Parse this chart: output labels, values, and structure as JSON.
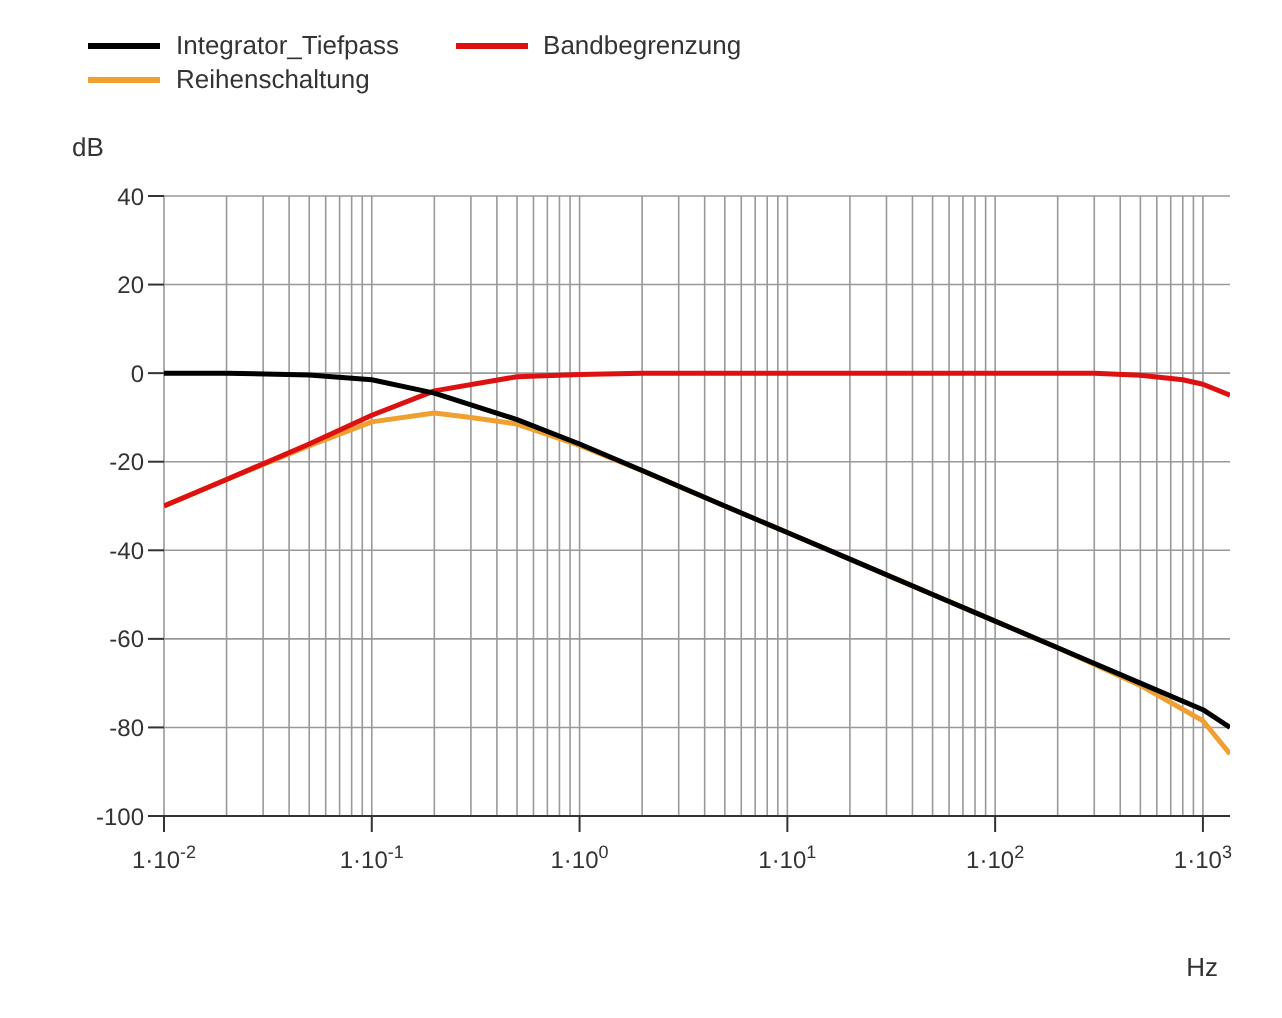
{
  "chart_data": {
    "type": "line",
    "xlabel": "Hz",
    "ylabel": "dB",
    "log": "x",
    "grid": true,
    "legend": "top left",
    "marker": "none",
    "line_style": "solid",
    "xlim": [
      0.01,
      1350
    ],
    "ylim": [
      -100,
      40
    ],
    "xticks": [
      {
        "value": 0.01,
        "label": "1·10$^{-2}$"
      },
      {
        "value": 0.1,
        "label": "1·10$^{-1}$"
      },
      {
        "value": 1,
        "label": "1·10$^{0}$"
      },
      {
        "value": 10,
        "label": "1·10$^{1}$"
      },
      {
        "value": 100,
        "label": "1·10$^{2}$"
      },
      {
        "value": 1000,
        "label": "1·10$^{3}$"
      }
    ],
    "yticks": [
      -100,
      -80,
      -60,
      -40,
      -20,
      0,
      20,
      40
    ],
    "series": [
      {
        "name": "Integrator_Tiefpass",
        "color": "#000000",
        "x": [
          0.01,
          0.02,
          0.05,
          0.1,
          0.2,
          0.5,
          1,
          2,
          5,
          10,
          20,
          50,
          100,
          200,
          500,
          1000,
          1350
        ],
        "values": [
          0,
          0,
          -0.4,
          -1.5,
          -4.5,
          -10.5,
          -16,
          -22,
          -30,
          -36,
          -42,
          -50,
          -56,
          -62,
          -70,
          -76,
          -80
        ]
      },
      {
        "name": "Bandbegrenzung",
        "color": "#dd1111",
        "x": [
          0.01,
          0.02,
          0.05,
          0.1,
          0.2,
          0.5,
          1,
          2,
          10,
          100,
          300,
          500,
          800,
          1000,
          1350
        ],
        "values": [
          -30,
          -24,
          -16,
          -9.5,
          -4,
          -0.8,
          -0.3,
          0,
          0,
          0,
          0,
          -0.5,
          -1.5,
          -2.5,
          -5
        ]
      },
      {
        "name": "Reihenschaltung",
        "color": "#f0a030",
        "x": [
          0.01,
          0.02,
          0.05,
          0.1,
          0.2,
          0.3,
          0.5,
          1,
          2,
          5,
          10,
          100,
          200,
          500,
          1000,
          1350
        ],
        "values": [
          -30,
          -24,
          -16.4,
          -11,
          -9,
          -10,
          -11.5,
          -16.3,
          -22,
          -30,
          -36,
          -56,
          -62,
          -70.5,
          -78.5,
          -86
        ]
      }
    ]
  }
}
